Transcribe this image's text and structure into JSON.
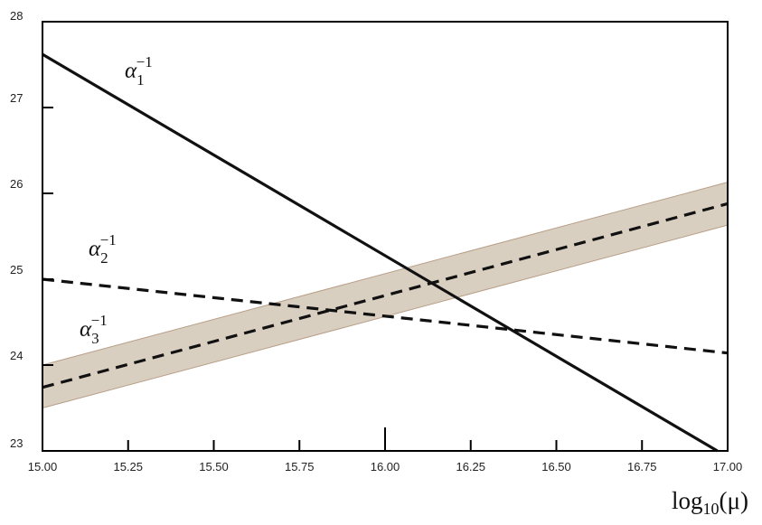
{
  "chart_data": {
    "type": "line",
    "xlabel": "log10(μ)",
    "xlabel_parts": {
      "base": "log",
      "sub": "10",
      "arg": "(μ)"
    },
    "xlim": [
      15.0,
      17.0
    ],
    "ylim": [
      23,
      28
    ],
    "x_ticks": [
      "15.00",
      "15.25",
      "15.50",
      "15.75",
      "16.00",
      "16.25",
      "16.50",
      "16.75",
      "17.00"
    ],
    "y_ticks": [
      "23",
      "24",
      "25",
      "26",
      "27",
      "28"
    ],
    "grid": false,
    "colors": {
      "line": "#111111",
      "band_fill": "#d9cfc1",
      "band_edge": "#b89e86",
      "frame": "#000000"
    },
    "series": [
      {
        "name": "α1^-1",
        "label_parts": {
          "base": "α",
          "sub": "1",
          "sup": "−1"
        },
        "style": "solid",
        "x": [
          15.0,
          16.97
        ],
        "y": [
          27.62,
          23.0
        ]
      },
      {
        "name": "α2^-1",
        "label_parts": {
          "base": "α",
          "sub": "2",
          "sup": "−1"
        },
        "style": "dashed",
        "x": [
          15.0,
          17.0
        ],
        "y": [
          25.0,
          24.14
        ]
      },
      {
        "name": "α3^-1",
        "label_parts": {
          "base": "α",
          "sub": "3",
          "sup": "−1"
        },
        "style": "dashed",
        "x": [
          15.0,
          17.0
        ],
        "y": [
          23.74,
          25.88
        ],
        "band": {
          "x": [
            15.0,
            17.0
          ],
          "lower": [
            23.5,
            25.63
          ],
          "upper": [
            24.0,
            26.13
          ]
        }
      }
    ]
  }
}
